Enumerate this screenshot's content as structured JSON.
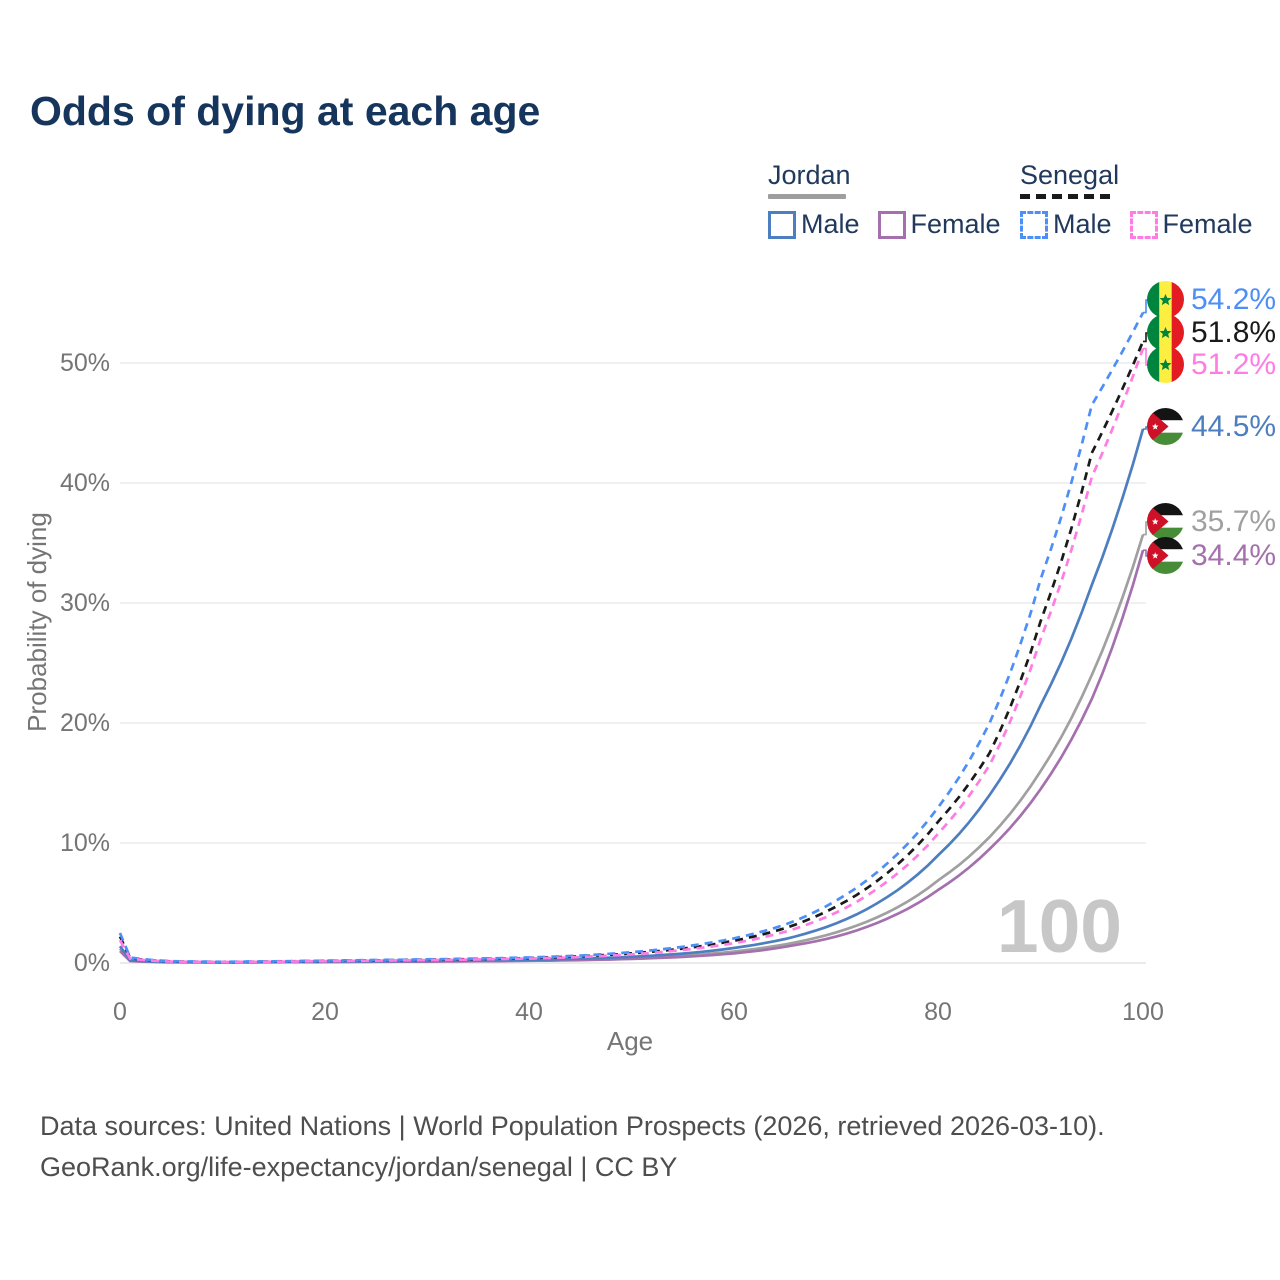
{
  "title": "Odds of dying at each age",
  "legend": {
    "jordan": {
      "header": "Jordan",
      "line_color": "#9e9e9e",
      "male_label": "Male",
      "female_label": "Female"
    },
    "senegal": {
      "header": "Senegal",
      "line_color": "#1a1a1a",
      "male_label": "Male",
      "female_label": "Female"
    }
  },
  "chart_data": {
    "type": "line",
    "title": "Odds of dying at each age",
    "xlabel": "Age",
    "ylabel": "Probability of dying",
    "x_ticks": [
      "0",
      "20",
      "40",
      "60",
      "80",
      "100"
    ],
    "y_ticks": [
      "0%",
      "10%",
      "20%",
      "30%",
      "40%",
      "50%"
    ],
    "xlim": [
      0,
      100
    ],
    "ylim_pct": [
      0,
      57
    ],
    "grid": "horizontal",
    "age_counter": "100",
    "ages": [
      0,
      1,
      5,
      10,
      15,
      20,
      25,
      30,
      35,
      40,
      45,
      50,
      55,
      60,
      65,
      70,
      75,
      80,
      85,
      90,
      95,
      100
    ],
    "series": [
      {
        "name": "Senegal Male",
        "country": "Senegal",
        "sex": "Male",
        "style": "dashed",
        "color": "#4d8ef7",
        "end_label": "54.2%",
        "end_value": 54.2,
        "values": [
          2.5,
          0.45,
          0.15,
          0.1,
          0.14,
          0.2,
          0.25,
          0.3,
          0.37,
          0.46,
          0.62,
          0.9,
          1.35,
          2.05,
          3.2,
          5.2,
          8.3,
          13.0,
          20.0,
          32.0,
          46.5,
          54.2
        ]
      },
      {
        "name": "Senegal Both sexes",
        "country": "Senegal",
        "sex": "Both",
        "style": "dashed",
        "color": "#1a1a1a",
        "end_label": "51.8%",
        "end_value": 51.8,
        "values": [
          2.2,
          0.4,
          0.13,
          0.09,
          0.12,
          0.18,
          0.22,
          0.27,
          0.33,
          0.41,
          0.56,
          0.8,
          1.2,
          1.85,
          2.9,
          4.7,
          7.5,
          11.8,
          17.5,
          28.5,
          42.5,
          51.8
        ]
      },
      {
        "name": "Senegal Female",
        "country": "Senegal",
        "sex": "Female",
        "style": "dashed",
        "color": "#ff7ce4",
        "end_label": "51.2%",
        "end_value": 51.2,
        "values": [
          1.9,
          0.36,
          0.12,
          0.08,
          0.11,
          0.16,
          0.2,
          0.24,
          0.3,
          0.37,
          0.5,
          0.72,
          1.08,
          1.65,
          2.6,
          4.2,
          6.8,
          10.8,
          16.5,
          27.0,
          40.5,
          51.2
        ]
      },
      {
        "name": "Jordan Male",
        "country": "Jordan",
        "sex": "Male",
        "style": "solid",
        "color": "#4d7ec0",
        "end_label": "44.5%",
        "end_value": 44.5,
        "values": [
          1.4,
          0.22,
          0.08,
          0.06,
          0.09,
          0.13,
          0.15,
          0.18,
          0.22,
          0.27,
          0.36,
          0.52,
          0.78,
          1.25,
          2.0,
          3.3,
          5.5,
          9.0,
          14.0,
          21.5,
          31.5,
          44.5
        ]
      },
      {
        "name": "Jordan Both sexes",
        "country": "Jordan",
        "sex": "Both",
        "style": "solid",
        "color": "#a0a0a0",
        "end_label": "35.7%",
        "end_value": 35.7,
        "values": [
          1.2,
          0.19,
          0.07,
          0.05,
          0.07,
          0.1,
          0.12,
          0.14,
          0.17,
          0.21,
          0.28,
          0.4,
          0.6,
          0.95,
          1.55,
          2.55,
          4.2,
          6.9,
          10.5,
          16.0,
          24.0,
          35.7
        ]
      },
      {
        "name": "Jordan Female",
        "country": "Jordan",
        "sex": "Female",
        "style": "solid",
        "color": "#a470ae",
        "end_label": "34.4%",
        "end_value": 34.4,
        "values": [
          1.0,
          0.16,
          0.06,
          0.04,
          0.06,
          0.08,
          0.1,
          0.12,
          0.15,
          0.18,
          0.24,
          0.34,
          0.51,
          0.8,
          1.35,
          2.2,
          3.7,
          6.1,
          9.5,
          14.5,
          22.0,
          34.4
        ]
      }
    ]
  },
  "footer": {
    "line1": "Data sources: United Nations | World Population Prospects (2026, retrieved 2026-03-10).",
    "line2": "GeoRank.org/life-expectancy/jordan/senegal | CC BY"
  }
}
